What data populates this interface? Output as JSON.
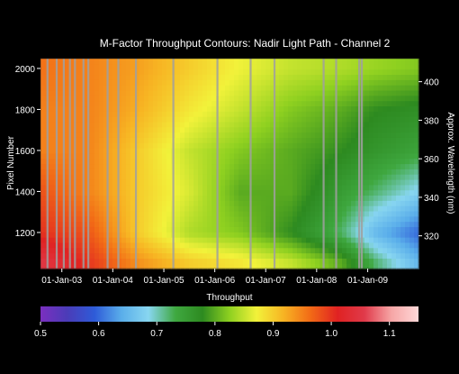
{
  "chart_data": {
    "type": "heatmap",
    "title": "M-Factor Throughput Contours: Nadir Light Path - Channel 2",
    "xlabel": "",
    "ylabel": "Pixel Number",
    "y2label": "Approx. Wavelength (nm)",
    "colorbar_label": "Throughput",
    "x_ticks": [
      "01-Jan-03",
      "01-Jan-04",
      "01-Jan-05",
      "01-Jan-06",
      "01-Jan-07",
      "01-Jan-08",
      "01-Jan-09"
    ],
    "x_range": [
      "2002-08-01",
      "2009-12-31"
    ],
    "y_range": [
      1024,
      2048
    ],
    "y_ticks": [
      1200,
      1400,
      1600,
      1800,
      2000
    ],
    "y2_range": [
      303,
      412
    ],
    "y2_ticks": [
      320,
      340,
      360,
      380,
      400
    ],
    "colorbar_range": [
      0.5,
      1.15
    ],
    "colorbar_ticks": [
      0.5,
      0.6,
      0.7,
      0.8,
      0.9,
      1.0,
      1.1
    ],
    "colorbar_tick_labels": [
      "0.5",
      "0.6",
      "0.7",
      "0.8",
      "0.9",
      "1.0",
      "1.1"
    ],
    "colormap": [
      "#7b2fbf",
      "#4a3cb8",
      "#2e5bd8",
      "#5aaeea",
      "#88d6f0",
      "#3fa840",
      "#2d8a20",
      "#8ed020",
      "#f2f23a",
      "#f7b423",
      "#f26a16",
      "#e02222",
      "#e03a4a",
      "#f6a6a6",
      "#ffd8d8"
    ],
    "gap_dates": [
      "2002-09-20",
      "2002-11-25",
      "2003-01-15",
      "2003-02-28",
      "2003-04-05",
      "2003-06-05",
      "2003-07-10",
      "2003-11-25",
      "2004-02-10",
      "2004-06-15",
      "2005-03-10",
      "2006-01-20",
      "2006-09-15",
      "2007-03-05",
      "2008-02-20",
      "2008-05-20",
      "2008-11-01",
      "2008-11-20"
    ],
    "throughput_timeline": {
      "dates": [
        "2002-08-01",
        "2003-07-01",
        "2004-07-01",
        "2005-07-01",
        "2006-07-01",
        "2007-07-01",
        "2008-07-01",
        "2009-03-01",
        "2009-12-31"
      ],
      "pixel_levels": [
        1060,
        1200,
        1400,
        1600,
        1800,
        2000
      ],
      "values": [
        [
          1.05,
          1.0,
          0.98,
          0.95,
          0.95,
          0.96
        ],
        [
          1.0,
          0.98,
          0.95,
          0.95,
          0.95,
          0.95
        ],
        [
          0.94,
          0.9,
          0.9,
          0.9,
          0.92,
          0.93
        ],
        [
          0.9,
          0.84,
          0.86,
          0.85,
          0.88,
          0.9
        ],
        [
          0.88,
          0.82,
          0.8,
          0.82,
          0.85,
          0.87
        ],
        [
          0.85,
          0.78,
          0.8,
          0.8,
          0.82,
          0.85
        ],
        [
          0.8,
          0.72,
          0.75,
          0.78,
          0.8,
          0.84
        ],
        [
          0.72,
          0.65,
          0.72,
          0.76,
          0.78,
          0.83
        ],
        [
          0.65,
          0.6,
          0.68,
          0.74,
          0.77,
          0.82
        ]
      ]
    }
  }
}
